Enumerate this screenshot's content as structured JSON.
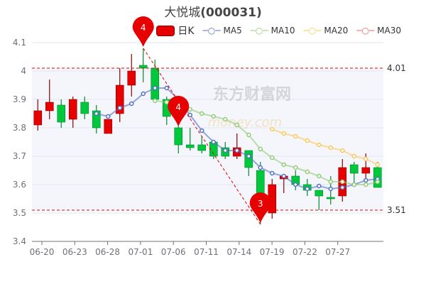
{
  "title_name": "大悦城",
  "title_code": "(000031)",
  "watermark": [
    "东方财富网",
    "money.com"
  ],
  "colors": {
    "up": "#e60000",
    "down": "#00c73c",
    "ma5": "#5470c6",
    "ma10": "#91cc75",
    "ma20": "#fac858",
    "ma30": "#ee6666",
    "markline": "#e60000",
    "band": "#f4f6fb"
  },
  "chart_data": {
    "type": "candlestick",
    "title": "大悦城(000031)",
    "legend": [
      "日K",
      "MA5",
      "MA10",
      "MA20",
      "MA30"
    ],
    "legend_placement": "top",
    "ylim": [
      3.4,
      4.1
    ],
    "yticks": [
      "4.1",
      "4",
      "3.9",
      "3.8",
      "3.7",
      "3.6",
      "3.5",
      "3.4"
    ],
    "xtick_labels": [
      "06-20",
      "06-23",
      "06-28",
      "07-01",
      "07-06",
      "07-11",
      "07-14",
      "07-19",
      "07-22",
      "07-27"
    ],
    "grid": true,
    "candles": [
      {
        "o": 3.81,
        "c": 3.86,
        "h": 3.9,
        "l": 3.79
      },
      {
        "o": 3.86,
        "c": 3.89,
        "h": 3.97,
        "l": 3.83
      },
      {
        "o": 3.88,
        "c": 3.82,
        "h": 3.9,
        "l": 3.8
      },
      {
        "o": 3.83,
        "c": 3.9,
        "h": 3.91,
        "l": 3.8
      },
      {
        "o": 3.89,
        "c": 3.85,
        "h": 3.91,
        "l": 3.83
      },
      {
        "o": 3.86,
        "c": 3.8,
        "h": 3.88,
        "l": 3.78
      },
      {
        "o": 3.78,
        "c": 3.83,
        "h": 3.83,
        "l": 3.78
      },
      {
        "o": 3.85,
        "c": 3.95,
        "h": 4.01,
        "l": 3.82
      },
      {
        "o": 3.95,
        "c": 4.0,
        "h": 4.06,
        "l": 3.91
      },
      {
        "o": 4.02,
        "c": 4.01,
        "h": 4.08,
        "l": 3.96
      },
      {
        "o": 4.01,
        "c": 3.9,
        "h": 4.04,
        "l": 3.89
      },
      {
        "o": 3.9,
        "c": 3.84,
        "h": 3.91,
        "l": 3.81
      },
      {
        "o": 3.8,
        "c": 3.74,
        "h": 3.81,
        "l": 3.71
      },
      {
        "o": 3.74,
        "c": 3.73,
        "h": 3.8,
        "l": 3.72
      },
      {
        "o": 3.74,
        "c": 3.72,
        "h": 3.77,
        "l": 3.71
      },
      {
        "o": 3.75,
        "c": 3.7,
        "h": 3.75,
        "l": 3.69
      },
      {
        "o": 3.73,
        "c": 3.7,
        "h": 3.75,
        "l": 3.69
      },
      {
        "o": 3.7,
        "c": 3.73,
        "h": 3.78,
        "l": 3.69
      },
      {
        "o": 3.72,
        "c": 3.66,
        "h": 3.72,
        "l": 3.63
      },
      {
        "o": 3.65,
        "c": 3.52,
        "h": 3.68,
        "l": 3.46
      },
      {
        "o": 3.5,
        "c": 3.6,
        "h": 3.62,
        "l": 3.48
      },
      {
        "o": 3.62,
        "c": 3.63,
        "h": 3.63,
        "l": 3.57
      },
      {
        "o": 3.63,
        "c": 3.6,
        "h": 3.65,
        "l": 3.58
      },
      {
        "o": 3.6,
        "c": 3.58,
        "h": 3.62,
        "l": 3.56
      },
      {
        "o": 3.58,
        "c": 3.56,
        "h": 3.58,
        "l": 3.51
      },
      {
        "o": 3.555,
        "c": 3.55,
        "h": 3.63,
        "l": 3.53
      },
      {
        "o": 3.56,
        "c": 3.66,
        "h": 3.69,
        "l": 3.54
      },
      {
        "o": 3.67,
        "c": 3.64,
        "h": 3.68,
        "l": 3.6
      },
      {
        "o": 3.64,
        "c": 3.66,
        "h": 3.71,
        "l": 3.6
      },
      {
        "o": 3.66,
        "c": 3.59,
        "h": 3.68,
        "l": 3.59
      }
    ],
    "ma5": [
      null,
      null,
      null,
      null,
      null,
      3.85,
      3.84,
      3.87,
      3.885,
      3.92,
      3.94,
      3.94,
      3.9,
      3.845,
      3.79,
      3.75,
      3.72,
      3.72,
      3.7,
      3.66,
      3.64,
      3.63,
      3.6,
      3.585,
      3.595,
      3.585,
      3.59,
      3.6,
      3.615,
      3.62
    ],
    "ma10": [
      null,
      null,
      null,
      null,
      null,
      null,
      null,
      null,
      null,
      null,
      3.895,
      3.89,
      3.88,
      3.865,
      3.85,
      3.84,
      3.83,
      3.81,
      3.775,
      3.725,
      3.695,
      3.67,
      3.66,
      3.645,
      3.63,
      3.61,
      3.61,
      3.6,
      3.6,
      3.61
    ],
    "ma20": [
      null,
      null,
      null,
      null,
      null,
      null,
      null,
      null,
      null,
      null,
      null,
      null,
      null,
      null,
      null,
      null,
      null,
      null,
      null,
      null,
      3.795,
      3.78,
      3.77,
      3.755,
      3.74,
      3.73,
      3.72,
      3.7,
      3.69,
      3.67
    ],
    "ma30": [],
    "mark_lines": [
      {
        "value": 4.01,
        "label": "4.01"
      },
      {
        "value": 3.51,
        "label": "3.51"
      }
    ],
    "mark_area": [
      3.51,
      4.01
    ],
    "trend_line": {
      "from_index": 9,
      "from_value": 4.08,
      "to_index": 19,
      "to_value": 3.46
    },
    "mark_points": [
      {
        "index": 9,
        "value": 4.08,
        "label": "4",
        "anchor": "top"
      },
      {
        "index": 12,
        "value": 3.8,
        "label": "4",
        "anchor": "top"
      },
      {
        "index": 19,
        "value": 3.5,
        "label": "3",
        "anchor": "bottom"
      }
    ]
  }
}
